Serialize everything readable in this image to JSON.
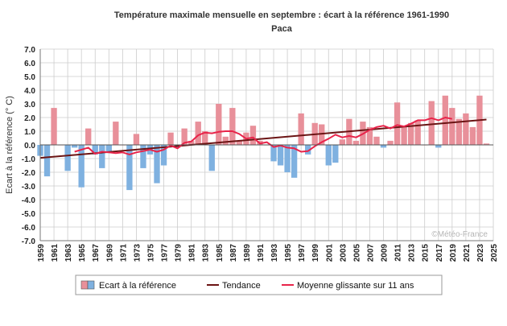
{
  "chart_data": {
    "type": "bar",
    "title": "Température maximale mensuelle en septembre : écart à la référence 1961-1990",
    "subtitle": "Paca",
    "ylabel": "Ecart à la référence (° C)",
    "xlabel": "",
    "ylim": [
      -7.0,
      7.0
    ],
    "xlim": [
      1959,
      2025
    ],
    "y_ticks": [
      "7.0",
      "6.0",
      "5.0",
      "4.0",
      "3.0",
      "2.0",
      "1.0",
      "0.0",
      "-1.0",
      "-2.0",
      "-3.0",
      "-4.0",
      "-5.0",
      "-6.0",
      "-7.0"
    ],
    "x_ticks": [
      "1959",
      "1961",
      "1963",
      "1965",
      "1967",
      "1969",
      "1971",
      "1973",
      "1975",
      "1977",
      "1979",
      "1981",
      "1983",
      "1985",
      "1987",
      "1989",
      "1991",
      "1993",
      "1995",
      "1997",
      "1999",
      "2001",
      "2003",
      "2005",
      "2007",
      "2009",
      "2011",
      "2013",
      "2015",
      "2017",
      "2019",
      "2021",
      "2023",
      "2025"
    ],
    "grid": true,
    "legend_position": "bottom",
    "watermark": "©Météo-France",
    "colors": {
      "positive": "#e8909a",
      "negative": "#7fb1e0",
      "trend": "#6b1414",
      "moving_average": "#e8244a",
      "grid": "#cccccc"
    },
    "series": [
      {
        "name": "Ecart à la référence",
        "kind": "bar",
        "x": [
          1959,
          1960,
          1961,
          1962,
          1963,
          1964,
          1965,
          1966,
          1967,
          1968,
          1969,
          1970,
          1971,
          1972,
          1973,
          1974,
          1975,
          1976,
          1977,
          1978,
          1979,
          1980,
          1981,
          1982,
          1983,
          1984,
          1985,
          1986,
          1987,
          1988,
          1989,
          1990,
          1991,
          1992,
          1993,
          1994,
          1995,
          1996,
          1997,
          1998,
          1999,
          2000,
          2001,
          2002,
          2003,
          2004,
          2005,
          2006,
          2007,
          2008,
          2009,
          2010,
          2011,
          2012,
          2013,
          2014,
          2015,
          2016,
          2017,
          2018,
          2019,
          2020,
          2021,
          2022,
          2023,
          2024
        ],
        "values": [
          -0.8,
          -2.3,
          2.7,
          0.0,
          -1.9,
          -0.2,
          -3.1,
          1.2,
          -0.7,
          -1.7,
          -0.6,
          1.7,
          0.0,
          -3.3,
          0.8,
          -1.7,
          -0.7,
          -2.8,
          -1.5,
          0.9,
          -0.2,
          1.2,
          0.3,
          1.7,
          1.0,
          -1.9,
          3.0,
          0.6,
          2.7,
          0.3,
          0.9,
          1.4,
          0.3,
          0.0,
          -1.2,
          -1.5,
          -2.0,
          -2.4,
          2.3,
          -0.7,
          1.6,
          1.5,
          -1.5,
          -1.3,
          0.4,
          1.9,
          0.3,
          1.7,
          1.3,
          0.6,
          -0.2,
          0.3,
          3.1,
          1.3,
          1.6,
          1.8,
          0.0,
          3.2,
          -0.2,
          3.6,
          2.7,
          1.9,
          2.3,
          1.3,
          3.6,
          0.1
        ]
      },
      {
        "name": "Tendance",
        "kind": "line",
        "x": [
          1959,
          2024
        ],
        "values": [
          -0.95,
          1.85
        ]
      },
      {
        "name": "Moyenne glissante sur 11 ans",
        "kind": "line",
        "x": [
          1964,
          1965,
          1966,
          1967,
          1968,
          1969,
          1970,
          1971,
          1972,
          1973,
          1974,
          1975,
          1976,
          1977,
          1978,
          1979,
          1980,
          1981,
          1982,
          1983,
          1984,
          1985,
          1986,
          1987,
          1988,
          1989,
          1990,
          1991,
          1992,
          1993,
          1994,
          1995,
          1996,
          1997,
          1998,
          1999,
          2000,
          2001,
          2002,
          2003,
          2004,
          2005,
          2006,
          2007,
          2008,
          2009,
          2010,
          2011,
          2012,
          2013,
          2014,
          2015,
          2016,
          2017,
          2018,
          2019
        ],
        "values": [
          -0.5,
          -0.35,
          -0.2,
          -0.65,
          -0.5,
          -0.55,
          -0.6,
          -0.55,
          -0.7,
          -0.55,
          -0.45,
          -0.35,
          -0.5,
          -0.35,
          -0.05,
          -0.25,
          0.15,
          0.25,
          0.7,
          0.9,
          0.85,
          0.95,
          1.0,
          1.0,
          0.8,
          0.45,
          0.55,
          0.1,
          0.2,
          -0.15,
          -0.05,
          -0.2,
          -0.25,
          -0.5,
          -0.45,
          -0.1,
          0.2,
          0.45,
          0.75,
          0.55,
          0.65,
          0.55,
          0.8,
          1.1,
          1.3,
          1.4,
          1.2,
          1.45,
          1.35,
          1.55,
          1.8,
          1.8,
          1.95,
          1.8,
          2.0,
          1.9
        ]
      }
    ]
  }
}
